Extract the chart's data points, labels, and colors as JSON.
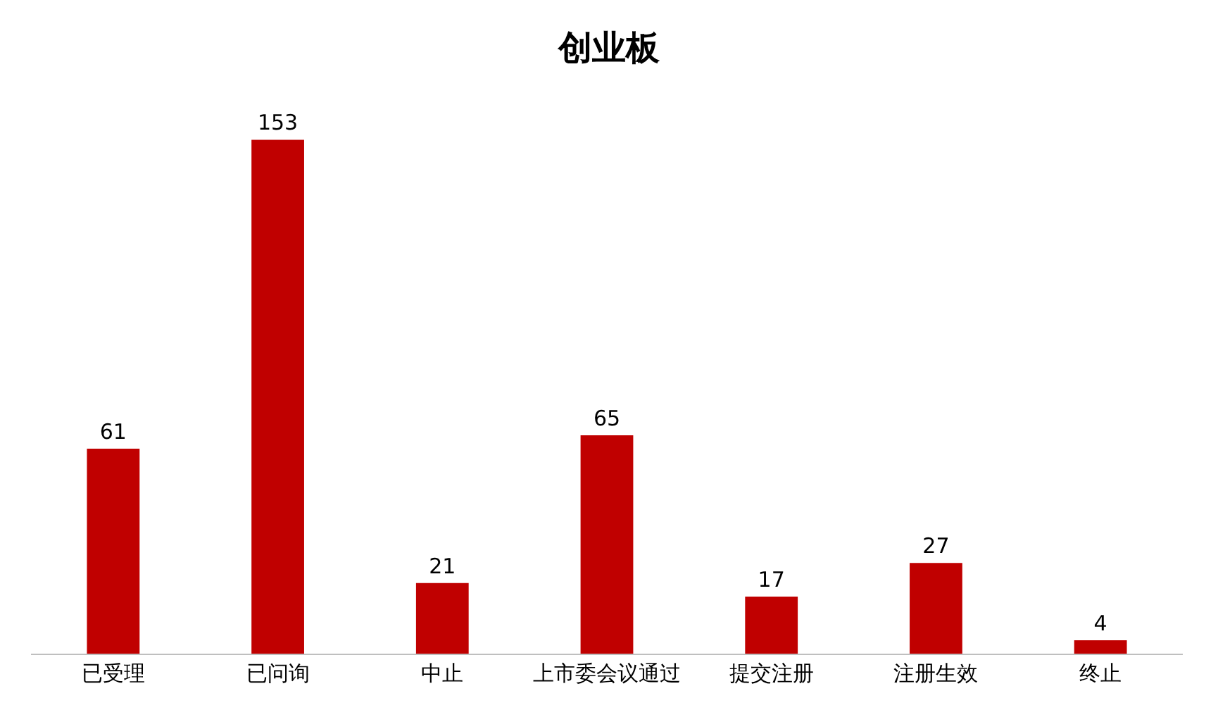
{
  "chart_data": {
    "type": "bar",
    "title": "创业板",
    "categories": [
      "已受理",
      "已问询",
      "中止",
      "上市委会议通过",
      "提交注册",
      "注册生效",
      "终止"
    ],
    "values": [
      61,
      153,
      21,
      65,
      17,
      27,
      4
    ],
    "color": "#c00000",
    "data_labels": true,
    "legend": false
  }
}
